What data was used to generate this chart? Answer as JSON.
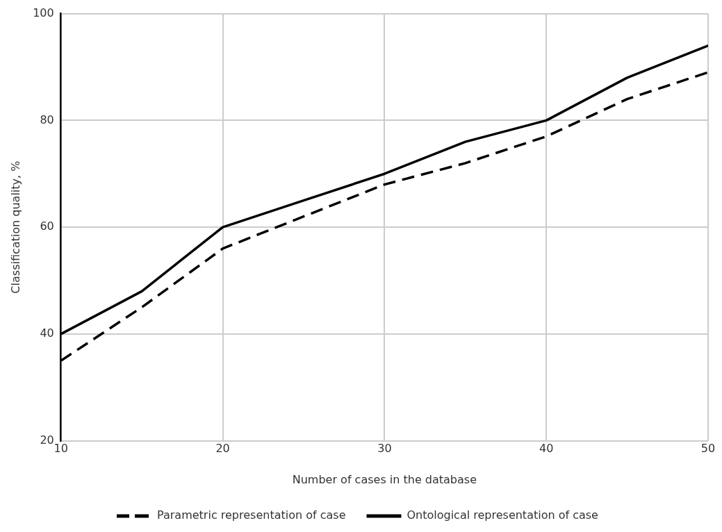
{
  "chart_data": {
    "type": "line",
    "xlabel": "Number of cases in the database",
    "ylabel": "Classification quality, %",
    "x": [
      10,
      15,
      20,
      25,
      30,
      35,
      40,
      45,
      50
    ],
    "series": [
      {
        "name": "Parametric representation of case",
        "color": "#000000",
        "line_style": "dashed",
        "values": [
          35,
          45,
          56,
          62,
          68,
          72,
          77,
          84,
          89
        ]
      },
      {
        "name": "Ontological representation of case",
        "color": "#000000",
        "line_style": "solid",
        "values": [
          40,
          48,
          60,
          65,
          70,
          76,
          80,
          88,
          94
        ]
      }
    ],
    "xlim": [
      10,
      50
    ],
    "xticks": [
      10,
      20,
      30,
      40,
      50
    ],
    "ylim": [
      20,
      100
    ],
    "yticks": [
      20,
      40,
      60,
      80,
      100
    ],
    "grid": true,
    "legend": "bottom",
    "marker": "none"
  }
}
